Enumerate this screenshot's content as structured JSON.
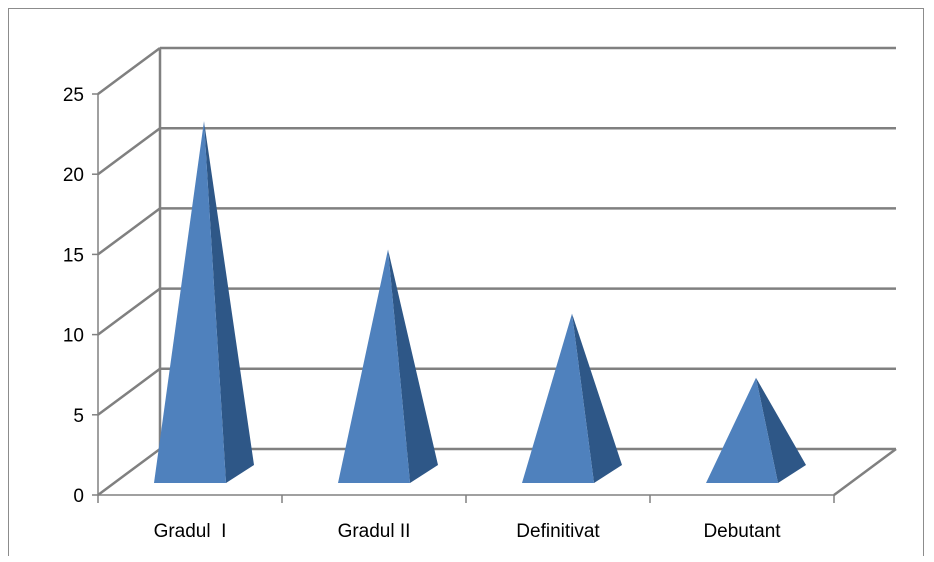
{
  "chart_data": {
    "type": "bar",
    "style": "3d-pyramid",
    "categories": [
      "Gradul  I",
      "Gradul II",
      "Definitivat",
      "Debutant"
    ],
    "values": [
      22,
      14,
      10,
      6
    ],
    "title": "",
    "xlabel": "",
    "ylabel": "",
    "ylim": [
      0,
      25
    ],
    "yticks": [
      "0",
      "5",
      "10",
      "15",
      "20",
      "25"
    ],
    "grid": true,
    "legend": "none",
    "colors": {
      "front": "#4f81bd",
      "side": "#2e5787",
      "grid": "#808080",
      "wall_back": "#ffffff"
    }
  }
}
